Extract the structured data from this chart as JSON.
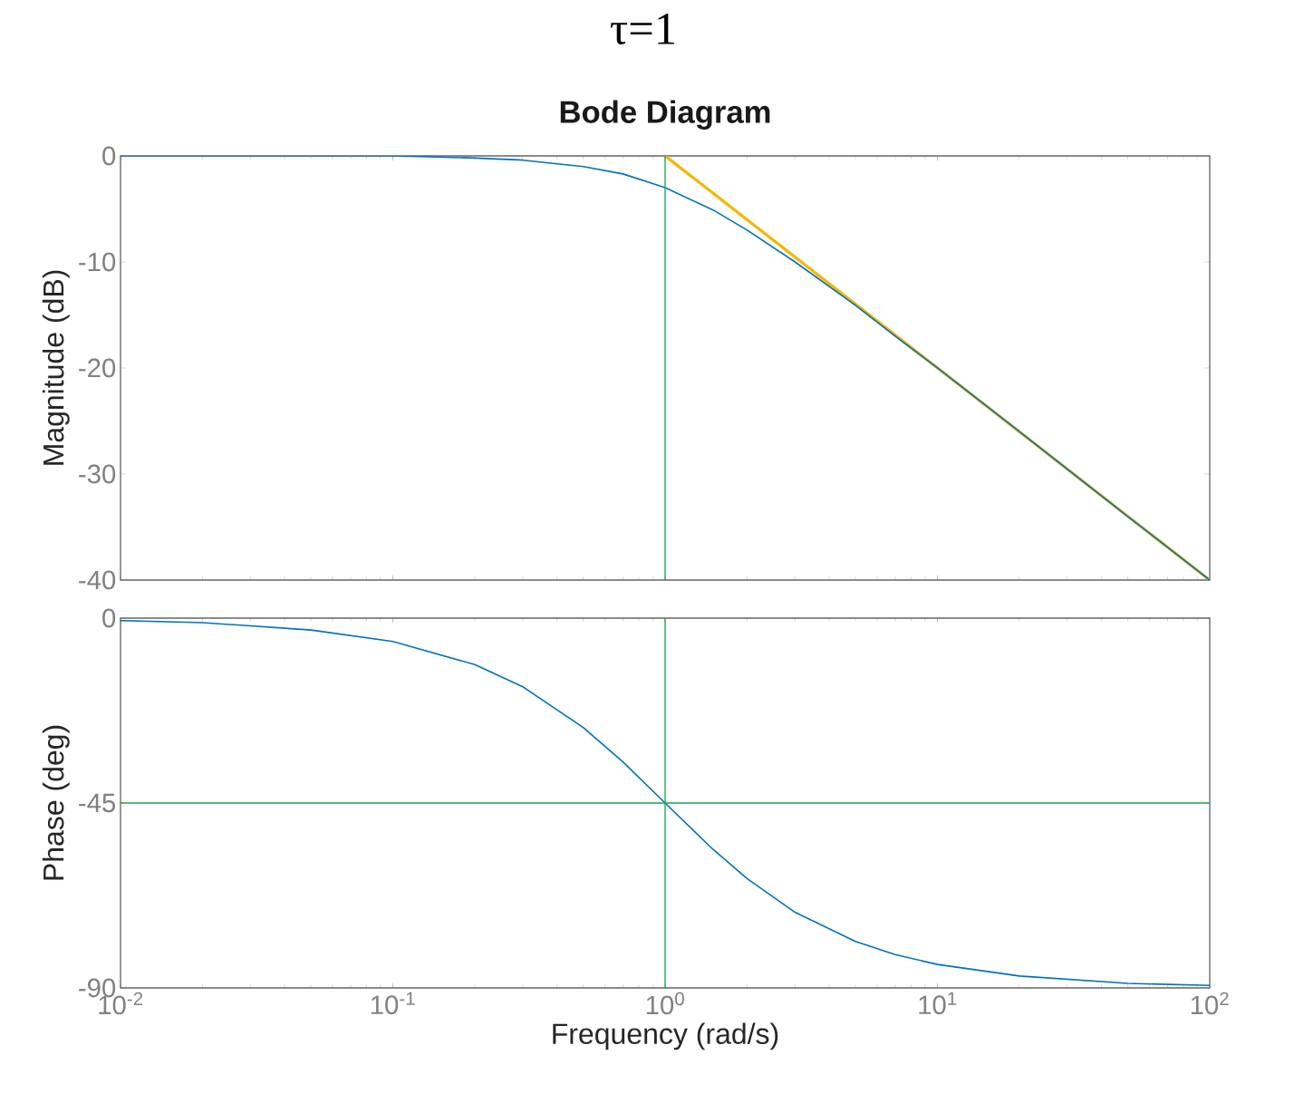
{
  "chart_data": [
    {
      "type": "line",
      "title": "Bode Diagram",
      "ylabel": "Magnitude (dB)",
      "annotations": [
        "τ=1"
      ],
      "log": "x",
      "grid": false,
      "tick_labels": "y",
      "xlim": [
        0.01,
        100
      ],
      "ylim": [
        -40,
        0
      ],
      "yticks": [
        0,
        -10,
        -20,
        -30,
        -40
      ],
      "series": [
        {
          "color": "#f5b700",
          "x": [
            1,
            100
          ],
          "values": [
            0,
            -40
          ]
        },
        {
          "color": "#0072bd",
          "x": [
            0.01,
            0.02,
            0.05,
            0.1,
            0.2,
            0.3,
            0.5,
            0.7,
            1,
            1.5,
            2,
            3,
            5,
            7,
            10,
            20,
            50,
            100
          ],
          "values": [
            0,
            0,
            0,
            0,
            -0.2,
            -0.4,
            -1.0,
            -1.7,
            -3.0,
            -5.1,
            -7.0,
            -10.0,
            -14.1,
            -17.0,
            -20.0,
            -26.0,
            -34.0,
            -40.0
          ]
        }
      ],
      "ref_lines": [
        {
          "axis": "x",
          "value": 1,
          "color": "#1aa34a"
        }
      ]
    },
    {
      "type": "line",
      "ylabel": "Phase (deg)",
      "xlabel": "Frequency  (rad/s)",
      "log": "x",
      "grid": false,
      "xlim": [
        0.01,
        100
      ],
      "ylim": [
        -90,
        0
      ],
      "xticks": [
        {
          "value": 0.01,
          "label": "10$^{-2}$"
        },
        {
          "value": 0.1,
          "label": "10$^{-1}$"
        },
        {
          "value": 1,
          "label": "10$^{0}$"
        },
        {
          "value": 10,
          "label": "10$^{1}$"
        },
        {
          "value": 100,
          "label": "10$^{2}$"
        }
      ],
      "yticks": [
        0,
        -45,
        -90
      ],
      "series": [
        {
          "color": "#0072bd",
          "x": [
            0.01,
            0.02,
            0.05,
            0.1,
            0.2,
            0.3,
            0.5,
            0.7,
            1,
            1.5,
            2,
            3,
            5,
            7,
            10,
            20,
            50,
            100
          ],
          "values": [
            -0.6,
            -1.1,
            -2.9,
            -5.7,
            -11.3,
            -16.7,
            -26.6,
            -35.0,
            -45.0,
            -56.3,
            -63.4,
            -71.6,
            -78.7,
            -81.9,
            -84.3,
            -87.1,
            -88.9,
            -89.4
          ]
        }
      ],
      "ref_lines": [
        {
          "axis": "x",
          "value": 1,
          "color": "#1aa34a"
        },
        {
          "axis": "y",
          "value": -45,
          "color": "#1aa34a"
        }
      ]
    }
  ]
}
